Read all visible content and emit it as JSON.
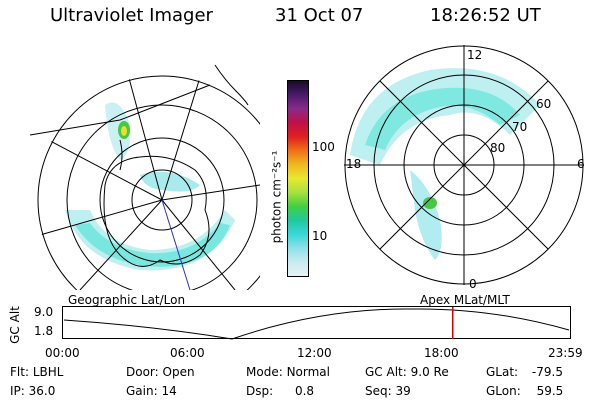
{
  "header": {
    "instrument": "Ultraviolet Imager",
    "date": "31 Oct 07",
    "time": "18:26:52 UT"
  },
  "colorbar": {
    "unit_label": "photon cm⁻²s⁻¹",
    "ticks": [
      "100",
      "10"
    ],
    "colors": [
      "#1a0a2a",
      "#4a1a6a",
      "#8a2a8a",
      "#c01048",
      "#e02020",
      "#f07018",
      "#f0b820",
      "#e8e830",
      "#a8e040",
      "#40d040",
      "#20c8a0",
      "#38d8d8",
      "#90e0e8",
      "#c8ecf0",
      "#e8f0f4"
    ]
  },
  "left_map": {
    "caption": "Geographic Lat/Lon"
  },
  "right_map": {
    "caption": "Apex MLat/MLT",
    "mlt_labels": {
      "top": "12",
      "left": "18",
      "right": "6",
      "bottom": "0"
    },
    "lat_labels": [
      "60",
      "70",
      "80"
    ]
  },
  "altitude_plot": {
    "ylabel": "GC Alt",
    "yticks": [
      "9.0",
      "1.8"
    ],
    "xticks": [
      "00:00",
      "06:00",
      "12:00",
      "18:00",
      "23:59"
    ],
    "marker_color": "#e00000",
    "marker_time_hours": 18.45
  },
  "status": {
    "filter_label": "Flt:",
    "filter_value": "LBHL",
    "door_label": "Door:",
    "door_value": "Open",
    "mode_label": "Mode:",
    "mode_value": "Normal",
    "gcalt_label": "GC Alt:",
    "gcalt_value": "9.0 Re",
    "glat_label": "GLat:",
    "glat_value": "-79.5",
    "ip_label": "IP:",
    "ip_value": "36.0",
    "gain_label": "Gain:",
    "gain_value": "14",
    "dsp_label": "Dsp:",
    "dsp_value": "0.8",
    "seq_label": "Seq:",
    "seq_value": "39",
    "glon_label": "GLon:",
    "glon_value": "59.5"
  }
}
